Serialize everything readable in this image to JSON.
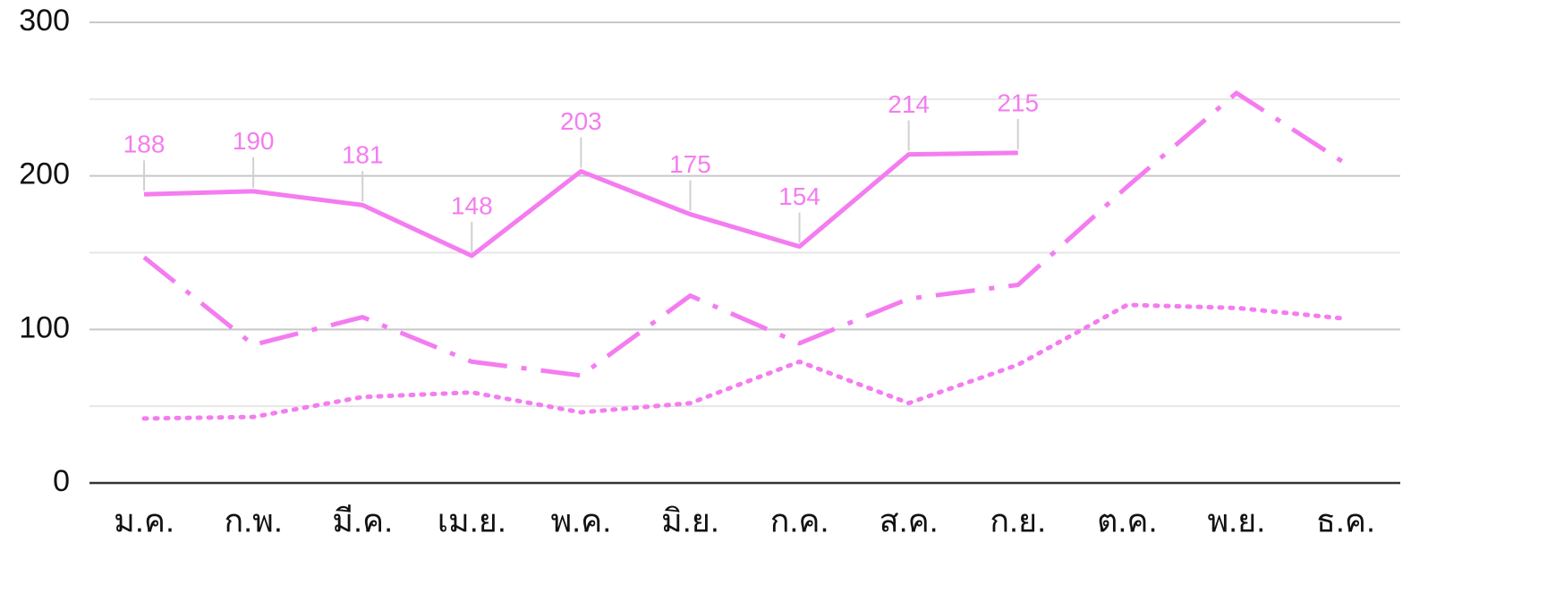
{
  "chart_data": {
    "type": "line",
    "categories": [
      "ม.ค.",
      "ก.พ.",
      "มี.ค.",
      "เม.ย.",
      "พ.ค.",
      "มิ.ย.",
      "ก.ค.",
      "ส.ค.",
      "ก.ย.",
      "ต.ค.",
      "พ.ย.",
      "ธ.ค."
    ],
    "series": [
      {
        "color": "#f47cf0",
        "style": "solid",
        "data_labels": true,
        "values": [
          188,
          190,
          181,
          148,
          203,
          175,
          154,
          214,
          215,
          null,
          null,
          null
        ]
      },
      {
        "color": "#f47cf0",
        "style": "dashdot",
        "values": [
          147,
          90,
          108,
          79,
          70,
          122,
          91,
          120,
          129,
          193,
          254,
          208
        ]
      },
      {
        "color": "#f47cf0",
        "style": "dotted",
        "values": [
          42,
          43,
          56,
          59,
          46,
          52,
          79,
          52,
          77,
          116,
          114,
          107
        ]
      }
    ],
    "ylim": [
      0,
      300
    ],
    "yticks": [
      0,
      100,
      200,
      300
    ],
    "minor_yticks": [
      50,
      150,
      250
    ],
    "grid": true
  }
}
